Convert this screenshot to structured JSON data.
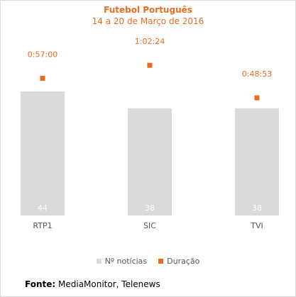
{
  "chart_data": {
    "type": "bar",
    "title": "Futebol Português",
    "subtitle": "14 a 20 de Março de 2016",
    "categories": [
      "RTP1",
      "SIC",
      "TVI"
    ],
    "series": [
      {
        "name": "Nº notícias",
        "type": "bar",
        "values": [
          44,
          38,
          38
        ],
        "color": "#d9d9d9"
      },
      {
        "name": "Duração",
        "type": "scatter",
        "values": [
          57,
          62.4,
          48.9
        ],
        "labels": [
          "0:57:00",
          "1:02:24",
          "0:48:53"
        ],
        "color": "#ec6b1e"
      }
    ],
    "ylim_bars": [
      0,
      51
    ],
    "ylim_duration": [
      0,
      76
    ],
    "grid": false,
    "legend": "bottom"
  },
  "source": {
    "label": "Fonte:",
    "text": "MediaMonitor, Telenews"
  }
}
